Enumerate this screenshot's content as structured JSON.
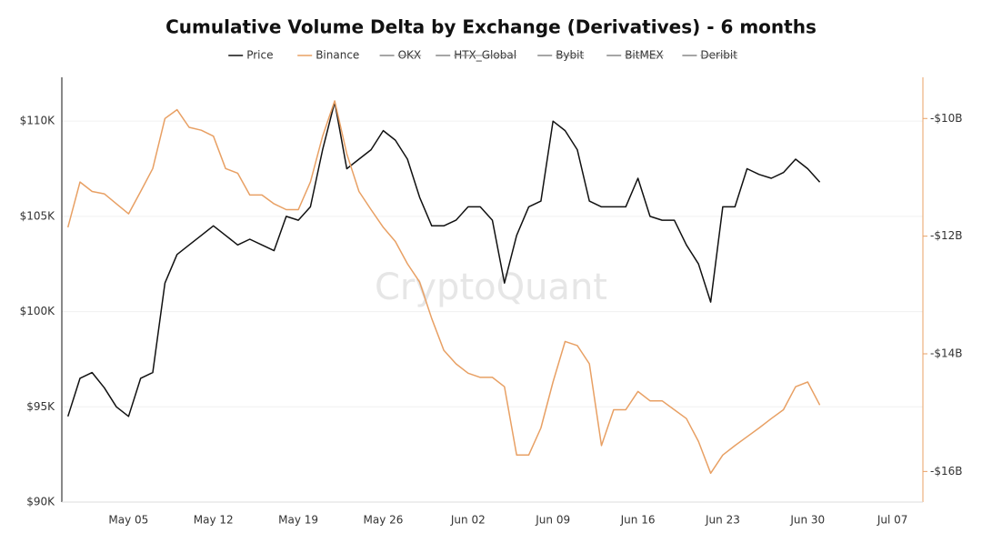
{
  "chart_data": {
    "type": "line",
    "title": "Cumulative Volume Delta by Exchange (Derivatives) - 6 months",
    "watermark": "CryptoQuant",
    "x": [
      "Apr 30",
      "May 01",
      "May 02",
      "May 03",
      "May 04",
      "May 05",
      "May 06",
      "May 07",
      "May 08",
      "May 09",
      "May 10",
      "May 11",
      "May 12",
      "May 13",
      "May 14",
      "May 15",
      "May 16",
      "May 17",
      "May 18",
      "May 19",
      "May 20",
      "May 21",
      "May 22",
      "May 23",
      "May 24",
      "May 25",
      "May 26",
      "May 27",
      "May 28",
      "May 29",
      "May 30",
      "May 31",
      "Jun 01",
      "Jun 02",
      "Jun 03",
      "Jun 04",
      "Jun 05",
      "Jun 06",
      "Jun 07",
      "Jun 08",
      "Jun 09",
      "Jun 10",
      "Jun 11",
      "Jun 12",
      "Jun 13",
      "Jun 14",
      "Jun 15",
      "Jun 16",
      "Jun 17",
      "Jun 18",
      "Jun 19",
      "Jun 20",
      "Jun 21",
      "Jun 22",
      "Jun 23",
      "Jun 24",
      "Jun 25",
      "Jun 26",
      "Jun 27",
      "Jun 28",
      "Jun 29",
      "Jun 30",
      "Jul 01",
      "Jul 02",
      "Jul 03",
      "Jul 04",
      "Jul 05",
      "Jul 06",
      "Jul 07",
      "Jul 08",
      "Jul 09"
    ],
    "xticks": [
      "May 05",
      "May 12",
      "May 19",
      "May 26",
      "Jun 02",
      "Jun 09",
      "Jun 16",
      "Jun 23",
      "Jun 30",
      "Jul 07"
    ],
    "series": [
      {
        "name": "Price",
        "color": "#111111",
        "axis": "y",
        "values": [
          94500,
          96500,
          96800,
          96000,
          95000,
          94500,
          96500,
          96800,
          101500,
          103000,
          103500,
          104000,
          104500,
          104000,
          103500,
          103800,
          103500,
          103200,
          105000,
          104800,
          105500,
          108500,
          111000,
          107500,
          108000,
          108500,
          109500,
          109000,
          108000,
          106000,
          104500,
          104500,
          104800,
          105500,
          105500,
          104800,
          101500,
          104000,
          105500,
          105800,
          110000,
          109500,
          108500,
          105800,
          105500,
          105500,
          105500,
          107000,
          105000,
          104800,
          104800,
          103500,
          102500,
          100500,
          105500,
          105500,
          107500,
          107200,
          107000,
          107300,
          108000,
          107500,
          106800,
          null,
          null,
          null,
          null,
          null,
          null,
          null,
          null
        ]
      },
      {
        "name": "Binance",
        "color": "#e8a064",
        "axis": "y2",
        "values": [
          -11850000000,
          -11080000000,
          -11240000000,
          -11280000000,
          -11450000000,
          -11620000000,
          -11240000000,
          -10850000000,
          -10000000000,
          -9850000000,
          -10150000000,
          -10200000000,
          -10300000000,
          -10850000000,
          -10930000000,
          -11300000000,
          -11300000000,
          -11450000000,
          -11550000000,
          -11550000000,
          -11080000000,
          -10300000000,
          -9700000000,
          -10600000000,
          -11240000000,
          -11550000000,
          -11850000000,
          -12090000000,
          -12470000000,
          -12780000000,
          -13400000000,
          -13940000000,
          -14170000000,
          -14330000000,
          -14400000000,
          -14400000000,
          -14560000000,
          -15720000000,
          -15720000000,
          -15260000000,
          -14480000000,
          -13790000000,
          -13860000000,
          -14170000000,
          -15560000000,
          -14950000000,
          -14950000000,
          -14640000000,
          -14800000000,
          -14800000000,
          -14950000000,
          -15100000000,
          -15490000000,
          -16030000000,
          -15720000000,
          -15560000000,
          -15410000000,
          -15260000000,
          -15100000000,
          -14950000000,
          -14560000000,
          -14480000000,
          -14870000000,
          null,
          null,
          null,
          null,
          null,
          null,
          null,
          null
        ]
      }
    ],
    "hidden_series": [
      {
        "name": "OKX",
        "color": "#888888"
      },
      {
        "name": "HTX_Global",
        "color": "#888888"
      },
      {
        "name": "Bybit",
        "color": "#888888"
      },
      {
        "name": "BitMEX",
        "color": "#888888"
      },
      {
        "name": "Deribit",
        "color": "#888888"
      }
    ],
    "ylim": [
      90000,
      112300
    ],
    "yticks": [
      {
        "value": 90000,
        "label": "$90K"
      },
      {
        "value": 95000,
        "label": "$95K"
      },
      {
        "value": 100000,
        "label": "$100K"
      },
      {
        "value": 105000,
        "label": "$105K"
      },
      {
        "value": 110000,
        "label": "$110K"
      }
    ],
    "y2lim": [
      -16520000000,
      -9300000000
    ],
    "y2ticks": [
      {
        "value": -16000000000,
        "label": "-$16B"
      },
      {
        "value": -14000000000,
        "label": "-$14B"
      },
      {
        "value": -12000000000,
        "label": "-$12B"
      },
      {
        "value": -10000000000,
        "label": "-$10B"
      }
    ],
    "grid": true
  }
}
